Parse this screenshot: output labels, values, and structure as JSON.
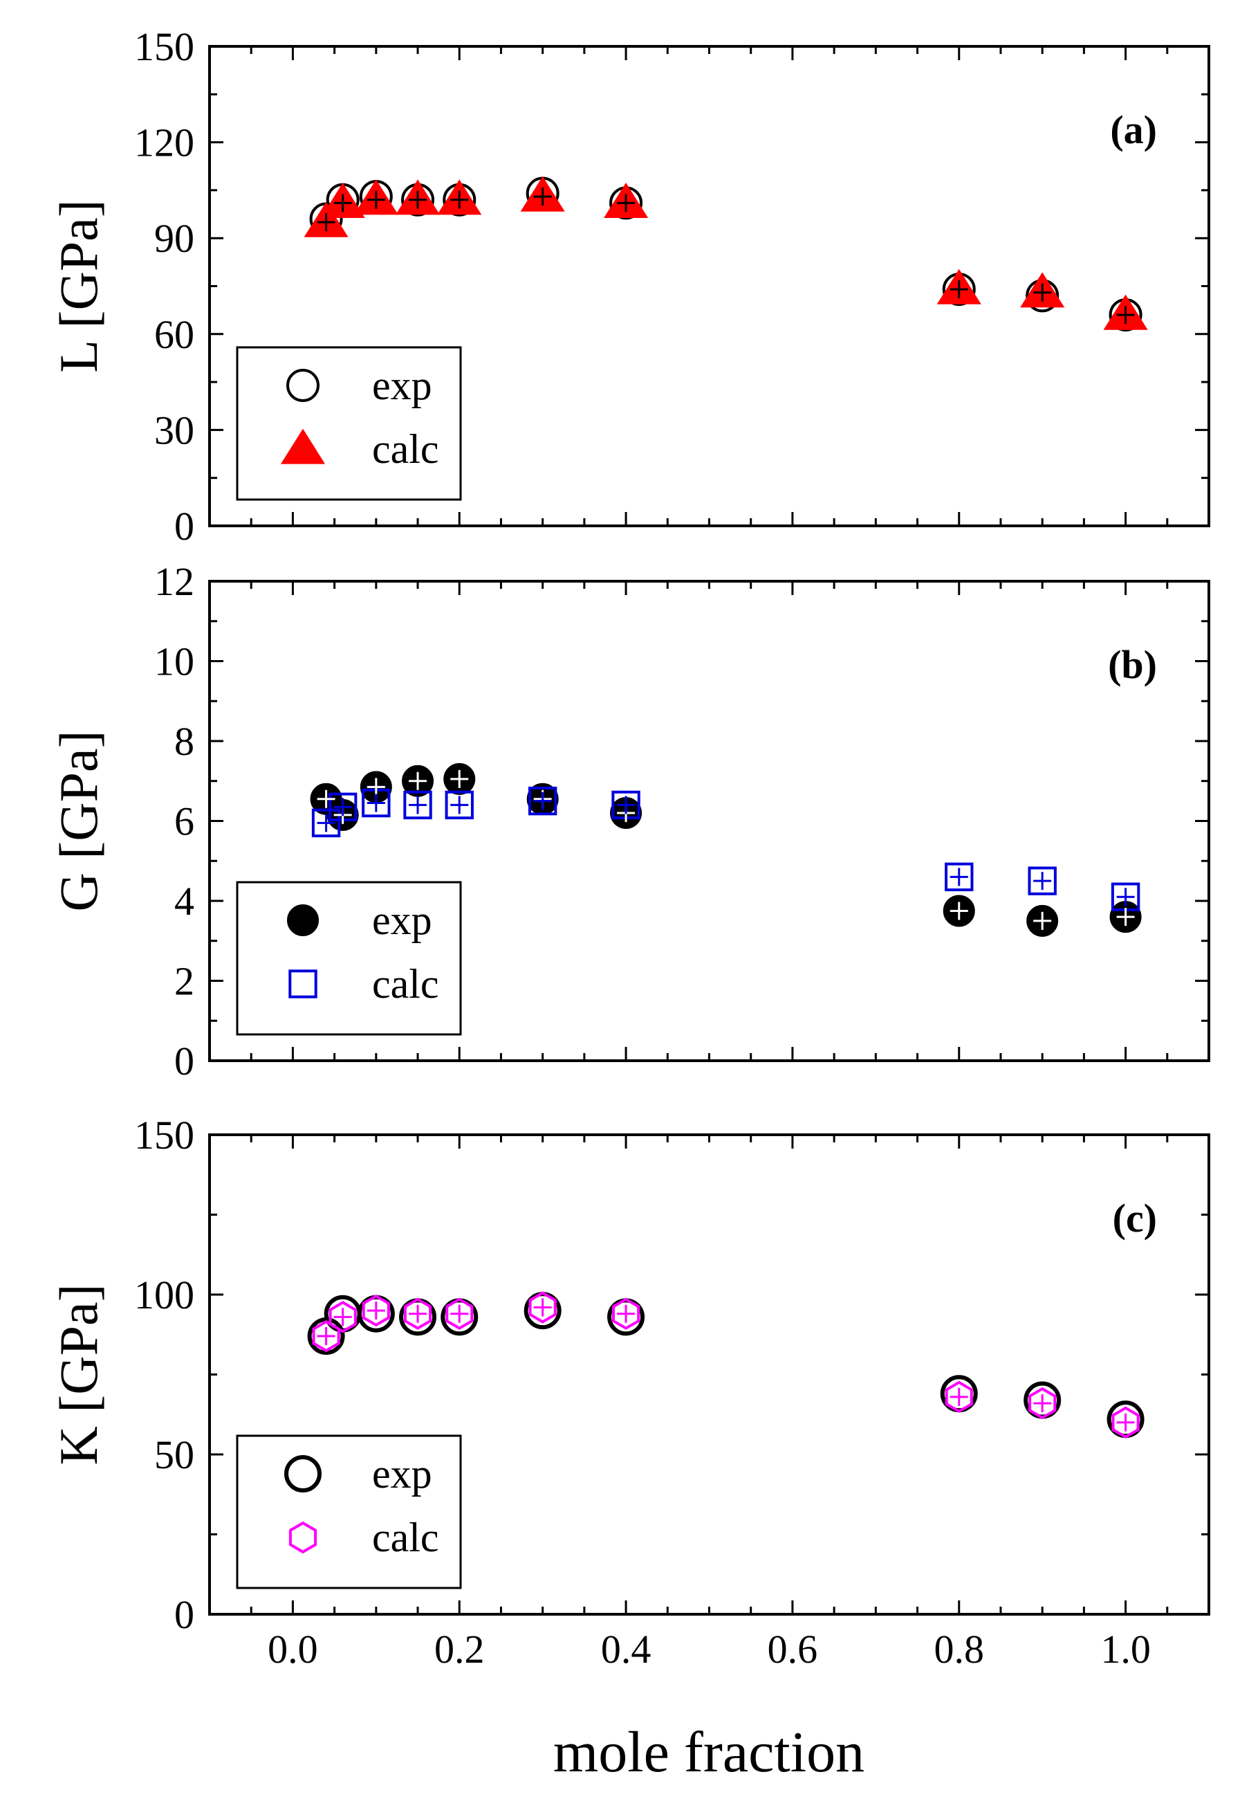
{
  "chart_data": {
    "type": "scatter",
    "xlabel": "mole fraction",
    "xlim": [
      -0.1,
      1.1
    ],
    "xticks": [
      "0.0",
      "0.2",
      "0.4",
      "0.6",
      "0.8",
      "1.0"
    ],
    "panels": [
      {
        "id": "a",
        "label": "(a)",
        "ylabel": "L [GPa]",
        "ylim": [
          0,
          150
        ],
        "yticks": [
          "0",
          "30",
          "60",
          "90",
          "120",
          "150"
        ],
        "legend": {
          "position": "bottom-left",
          "entries": [
            "exp",
            "calc"
          ]
        },
        "series": [
          {
            "name": "exp",
            "marker": "open-circle",
            "color": "#000000",
            "x": [
              0.04,
              0.06,
              0.1,
              0.15,
              0.2,
              0.3,
              0.4,
              0.8,
              0.9,
              1.0
            ],
            "y": [
              96,
              102,
              103,
              102,
              102,
              104,
              101,
              74,
              72,
              66
            ]
          },
          {
            "name": "calc",
            "marker": "filled-triangle",
            "color": "#ff0000",
            "x": [
              0.04,
              0.06,
              0.1,
              0.15,
              0.2,
              0.3,
              0.4,
              0.8,
              0.9,
              1.0
            ],
            "y": [
              95,
              101,
              102,
              102,
              102,
              103,
              101,
              74,
              73,
              66
            ]
          }
        ]
      },
      {
        "id": "b",
        "label": "(b)",
        "ylabel": "G [GPa]",
        "ylim": [
          0,
          12
        ],
        "yticks": [
          "0",
          "2",
          "4",
          "6",
          "8",
          "10",
          "12"
        ],
        "legend": {
          "position": "bottom-left",
          "entries": [
            "exp",
            "calc"
          ]
        },
        "series": [
          {
            "name": "exp",
            "marker": "filled-circle",
            "color": "#000000",
            "x": [
              0.04,
              0.06,
              0.1,
              0.15,
              0.2,
              0.3,
              0.4,
              0.8,
              0.9,
              1.0
            ],
            "y": [
              6.55,
              6.15,
              6.85,
              7.0,
              7.05,
              6.55,
              6.2,
              3.75,
              3.5,
              3.6
            ]
          },
          {
            "name": "calc",
            "marker": "open-square",
            "color": "#0000dd",
            "x": [
              0.04,
              0.06,
              0.1,
              0.15,
              0.2,
              0.3,
              0.4,
              0.8,
              0.9,
              1.0
            ],
            "y": [
              5.95,
              6.35,
              6.45,
              6.4,
              6.4,
              6.5,
              6.4,
              4.6,
              4.5,
              4.1
            ]
          }
        ]
      },
      {
        "id": "c",
        "label": "(c)",
        "ylabel": "K [GPa]",
        "ylim": [
          0,
          150
        ],
        "yticks": [
          "0",
          "50",
          "100",
          "150"
        ],
        "legend": {
          "position": "bottom-left",
          "entries": [
            "exp",
            "calc"
          ]
        },
        "series": [
          {
            "name": "exp",
            "marker": "open-circle-thick",
            "color": "#000000",
            "x": [
              0.04,
              0.06,
              0.1,
              0.15,
              0.2,
              0.3,
              0.4,
              0.8,
              0.9,
              1.0
            ],
            "y": [
              87,
              94,
              94,
              93,
              93,
              95,
              93,
              69,
              67,
              61
            ]
          },
          {
            "name": "calc",
            "marker": "open-hexagon",
            "color": "#ff00ff",
            "x": [
              0.04,
              0.06,
              0.1,
              0.15,
              0.2,
              0.3,
              0.4,
              0.8,
              0.9,
              1.0
            ],
            "y": [
              87,
              93,
              95,
              94,
              94,
              96,
              94,
              68,
              66,
              60
            ]
          }
        ]
      }
    ]
  }
}
